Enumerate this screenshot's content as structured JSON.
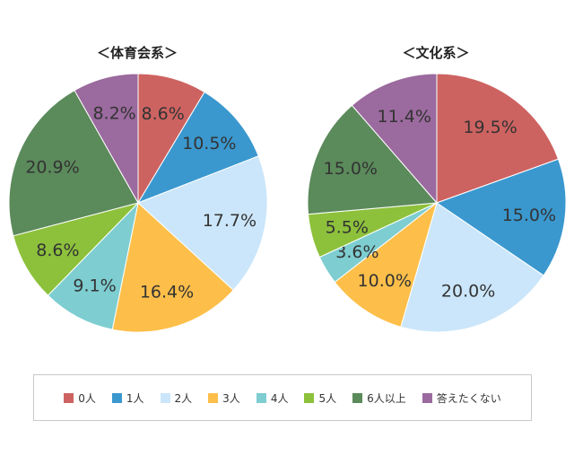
{
  "colors": {
    "0人": "#cd6361",
    "1人": "#3a98cf",
    "2人": "#cbe6fa",
    "3人": "#fdbf4a",
    "4人": "#7dcdd1",
    "5人": "#8dc13c",
    "6人以上": "#5b8a5b",
    "答えたくない": "#9b6a9e"
  },
  "chart_data": [
    {
      "type": "pie",
      "title": "＜体育会系＞",
      "categories": [
        "0人",
        "1人",
        "2人",
        "3人",
        "4人",
        "5人",
        "6人以上",
        "答えたくない"
      ],
      "values": [
        8.6,
        10.5,
        17.7,
        16.4,
        9.1,
        8.6,
        20.9,
        8.2
      ],
      "labels": [
        "8.6%",
        "10.5%",
        "17.7%",
        "16.4%",
        "9.1%",
        "8.6%",
        "20.9%",
        "8.2%"
      ],
      "start_angle": "12 o'clock",
      "direction": "clockwise"
    },
    {
      "type": "pie",
      "title": "＜文化系＞",
      "categories": [
        "0人",
        "1人",
        "2人",
        "3人",
        "4人",
        "5人",
        "6人以上",
        "答えたくない"
      ],
      "values": [
        19.5,
        15.0,
        20.0,
        10.0,
        3.6,
        5.5,
        15.0,
        11.4
      ],
      "labels": [
        "19.5%",
        "15.0%",
        "20.0%",
        "10.0%",
        "3.6%",
        "5.5%",
        "15.0%",
        "11.4%"
      ],
      "start_angle": "12 o'clock",
      "direction": "clockwise"
    }
  ],
  "legend": {
    "placement": "bottom",
    "items": [
      "0人",
      "1人",
      "2人",
      "3人",
      "4人",
      "5人",
      "6人以上",
      "答えたくない"
    ]
  }
}
